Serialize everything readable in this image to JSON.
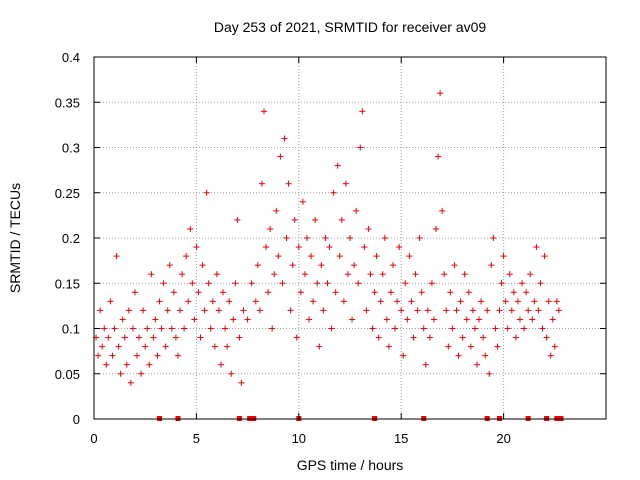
{
  "chart_data": {
    "type": "scatter",
    "title": "Day 253 of 2021, SRMTID for receiver av09",
    "xlabel": "GPS time / hours",
    "ylabel": "SRMTID / TECUs",
    "xlim": [
      0,
      25
    ],
    "ylim": [
      0,
      0.4
    ],
    "x_ticks": [
      0,
      5,
      10,
      15,
      20
    ],
    "x_tick_labels": [
      "0",
      "5",
      "10",
      "15",
      "20"
    ],
    "y_ticks": [
      0,
      0.05,
      0.1,
      0.15,
      0.2,
      0.25,
      0.3,
      0.35,
      0.4
    ],
    "y_tick_labels": [
      "0",
      "0.05",
      "0.1",
      "0.15",
      "0.2",
      "0.25",
      "0.3",
      "0.35",
      "0.4"
    ],
    "grid": true,
    "marker": "+",
    "color": "#ee0000",
    "baseline_markers_x": [
      3.2,
      4.1,
      7.1,
      7.6,
      7.8,
      10.0,
      13.7,
      16.1,
      19.2,
      19.8,
      21.2,
      22.1,
      22.6,
      22.8
    ],
    "series": [
      {
        "name": "SRMTID",
        "points": [
          [
            0.1,
            0.09
          ],
          [
            0.2,
            0.07
          ],
          [
            0.3,
            0.12
          ],
          [
            0.4,
            0.08
          ],
          [
            0.5,
            0.1
          ],
          [
            0.6,
            0.06
          ],
          [
            0.7,
            0.09
          ],
          [
            0.8,
            0.13
          ],
          [
            0.9,
            0.07
          ],
          [
            1.0,
            0.1
          ],
          [
            1.1,
            0.18
          ],
          [
            1.2,
            0.08
          ],
          [
            1.3,
            0.05
          ],
          [
            1.4,
            0.11
          ],
          [
            1.5,
            0.09
          ],
          [
            1.6,
            0.06
          ],
          [
            1.7,
            0.12
          ],
          [
            1.8,
            0.04
          ],
          [
            1.9,
            0.1
          ],
          [
            2.0,
            0.14
          ],
          [
            2.1,
            0.07
          ],
          [
            2.2,
            0.09
          ],
          [
            2.3,
            0.05
          ],
          [
            2.4,
            0.12
          ],
          [
            2.5,
            0.08
          ],
          [
            2.6,
            0.1
          ],
          [
            2.7,
            0.06
          ],
          [
            2.8,
            0.16
          ],
          [
            2.9,
            0.09
          ],
          [
            3.0,
            0.11
          ],
          [
            3.1,
            0.07
          ],
          [
            3.2,
            0.13
          ],
          [
            3.3,
            0.1
          ],
          [
            3.4,
            0.15
          ],
          [
            3.5,
            0.08
          ],
          [
            3.6,
            0.12
          ],
          [
            3.7,
            0.17
          ],
          [
            3.8,
            0.1
          ],
          [
            3.9,
            0.14
          ],
          [
            4.0,
            0.09
          ],
          [
            4.1,
            0.07
          ],
          [
            4.2,
            0.12
          ],
          [
            4.3,
            0.16
          ],
          [
            4.4,
            0.1
          ],
          [
            4.5,
            0.18
          ],
          [
            4.6,
            0.13
          ],
          [
            4.7,
            0.21
          ],
          [
            4.8,
            0.15
          ],
          [
            4.9,
            0.11
          ],
          [
            5.0,
            0.19
          ],
          [
            5.1,
            0.14
          ],
          [
            5.2,
            0.09
          ],
          [
            5.3,
            0.17
          ],
          [
            5.4,
            0.12
          ],
          [
            5.5,
            0.25
          ],
          [
            5.6,
            0.15
          ],
          [
            5.7,
            0.1
          ],
          [
            5.8,
            0.13
          ],
          [
            5.9,
            0.08
          ],
          [
            6.0,
            0.16
          ],
          [
            6.1,
            0.12
          ],
          [
            6.2,
            0.06
          ],
          [
            6.3,
            0.14
          ],
          [
            6.4,
            0.1
          ],
          [
            6.5,
            0.08
          ],
          [
            6.6,
            0.13
          ],
          [
            6.7,
            0.05
          ],
          [
            6.8,
            0.11
          ],
          [
            6.9,
            0.15
          ],
          [
            7.0,
            0.22
          ],
          [
            7.1,
            0.09
          ],
          [
            7.2,
            0.04
          ],
          [
            7.3,
            0.12
          ],
          [
            7.5,
            0.11
          ],
          [
            7.7,
            0.15
          ],
          [
            7.9,
            0.13
          ],
          [
            8.0,
            0.17
          ],
          [
            8.1,
            0.12
          ],
          [
            8.2,
            0.26
          ],
          [
            8.3,
            0.34
          ],
          [
            8.4,
            0.19
          ],
          [
            8.5,
            0.14
          ],
          [
            8.6,
            0.21
          ],
          [
            8.7,
            0.1
          ],
          [
            8.8,
            0.16
          ],
          [
            8.9,
            0.23
          ],
          [
            9.0,
            0.18
          ],
          [
            9.1,
            0.29
          ],
          [
            9.2,
            0.15
          ],
          [
            9.3,
            0.31
          ],
          [
            9.4,
            0.2
          ],
          [
            9.5,
            0.26
          ],
          [
            9.6,
            0.12
          ],
          [
            9.7,
            0.17
          ],
          [
            9.8,
            0.22
          ],
          [
            9.9,
            0.09
          ],
          [
            10.0,
            0.19
          ],
          [
            10.1,
            0.14
          ],
          [
            10.2,
            0.24
          ],
          [
            10.3,
            0.16
          ],
          [
            10.4,
            0.2
          ],
          [
            10.5,
            0.11
          ],
          [
            10.6,
            0.18
          ],
          [
            10.7,
            0.13
          ],
          [
            10.8,
            0.22
          ],
          [
            10.9,
            0.15
          ],
          [
            11.0,
            0.08
          ],
          [
            11.1,
            0.17
          ],
          [
            11.2,
            0.12
          ],
          [
            11.3,
            0.2
          ],
          [
            11.4,
            0.15
          ],
          [
            11.5,
            0.19
          ],
          [
            11.6,
            0.1
          ],
          [
            11.7,
            0.25
          ],
          [
            11.8,
            0.14
          ],
          [
            11.9,
            0.28
          ],
          [
            12.0,
            0.18
          ],
          [
            12.1,
            0.22
          ],
          [
            12.2,
            0.13
          ],
          [
            12.3,
            0.26
          ],
          [
            12.4,
            0.16
          ],
          [
            12.5,
            0.2
          ],
          [
            12.6,
            0.11
          ],
          [
            12.7,
            0.17
          ],
          [
            12.8,
            0.23
          ],
          [
            12.9,
            0.15
          ],
          [
            13.0,
            0.3
          ],
          [
            13.1,
            0.34
          ],
          [
            13.2,
            0.19
          ],
          [
            13.3,
            0.12
          ],
          [
            13.4,
            0.21
          ],
          [
            13.5,
            0.16
          ],
          [
            13.6,
            0.1
          ],
          [
            13.7,
            0.14
          ],
          [
            13.8,
            0.18
          ],
          [
            13.9,
            0.09
          ],
          [
            14.0,
            0.13
          ],
          [
            14.1,
            0.16
          ],
          [
            14.2,
            0.2
          ],
          [
            14.3,
            0.11
          ],
          [
            14.4,
            0.08
          ],
          [
            14.5,
            0.14
          ],
          [
            14.6,
            0.17
          ],
          [
            14.7,
            0.1
          ],
          [
            14.8,
            0.13
          ],
          [
            14.9,
            0.19
          ],
          [
            15.0,
            0.12
          ],
          [
            15.1,
            0.07
          ],
          [
            15.2,
            0.15
          ],
          [
            15.3,
            0.11
          ],
          [
            15.4,
            0.18
          ],
          [
            15.5,
            0.13
          ],
          [
            15.6,
            0.09
          ],
          [
            15.7,
            0.16
          ],
          [
            15.8,
            0.12
          ],
          [
            15.9,
            0.2
          ],
          [
            16.0,
            0.14
          ],
          [
            16.1,
            0.1
          ],
          [
            16.2,
            0.06
          ],
          [
            16.3,
            0.12
          ],
          [
            16.4,
            0.09
          ],
          [
            16.5,
            0.15
          ],
          [
            16.6,
            0.11
          ],
          [
            16.7,
            0.21
          ],
          [
            16.8,
            0.29
          ],
          [
            16.9,
            0.36
          ],
          [
            17.0,
            0.23
          ],
          [
            17.1,
            0.16
          ],
          [
            17.2,
            0.12
          ],
          [
            17.3,
            0.08
          ],
          [
            17.4,
            0.14
          ],
          [
            17.5,
            0.1
          ],
          [
            17.6,
            0.17
          ],
          [
            17.7,
            0.12
          ],
          [
            17.8,
            0.07
          ],
          [
            17.9,
            0.13
          ],
          [
            18.0,
            0.09
          ],
          [
            18.1,
            0.16
          ],
          [
            18.2,
            0.11
          ],
          [
            18.3,
            0.14
          ],
          [
            18.4,
            0.08
          ],
          [
            18.5,
            0.12
          ],
          [
            18.6,
            0.1
          ],
          [
            18.7,
            0.06
          ],
          [
            18.8,
            0.11
          ],
          [
            18.9,
            0.13
          ],
          [
            19.0,
            0.09
          ],
          [
            19.1,
            0.07
          ],
          [
            19.2,
            0.12
          ],
          [
            19.3,
            0.05
          ],
          [
            19.4,
            0.17
          ],
          [
            19.5,
            0.2
          ],
          [
            19.6,
            0.1
          ],
          [
            19.7,
            0.08
          ],
          [
            19.8,
            0.12
          ],
          [
            19.9,
            0.15
          ],
          [
            20.0,
            0.18
          ],
          [
            20.1,
            0.13
          ],
          [
            20.2,
            0.1
          ],
          [
            20.3,
            0.16
          ],
          [
            20.4,
            0.12
          ],
          [
            20.5,
            0.14
          ],
          [
            20.6,
            0.09
          ],
          [
            20.7,
            0.13
          ],
          [
            20.8,
            0.11
          ],
          [
            20.9,
            0.15
          ],
          [
            21.0,
            0.1
          ],
          [
            21.1,
            0.14
          ],
          [
            21.2,
            0.12
          ],
          [
            21.3,
            0.16
          ],
          [
            21.4,
            0.11
          ],
          [
            21.5,
            0.13
          ],
          [
            21.6,
            0.19
          ],
          [
            21.7,
            0.12
          ],
          [
            21.8,
            0.15
          ],
          [
            21.9,
            0.1
          ],
          [
            22.0,
            0.18
          ],
          [
            22.1,
            0.09
          ],
          [
            22.2,
            0.13
          ],
          [
            22.3,
            0.07
          ],
          [
            22.4,
            0.11
          ],
          [
            22.5,
            0.08
          ],
          [
            22.6,
            0.13
          ],
          [
            22.7,
            0.12
          ]
        ]
      }
    ]
  }
}
